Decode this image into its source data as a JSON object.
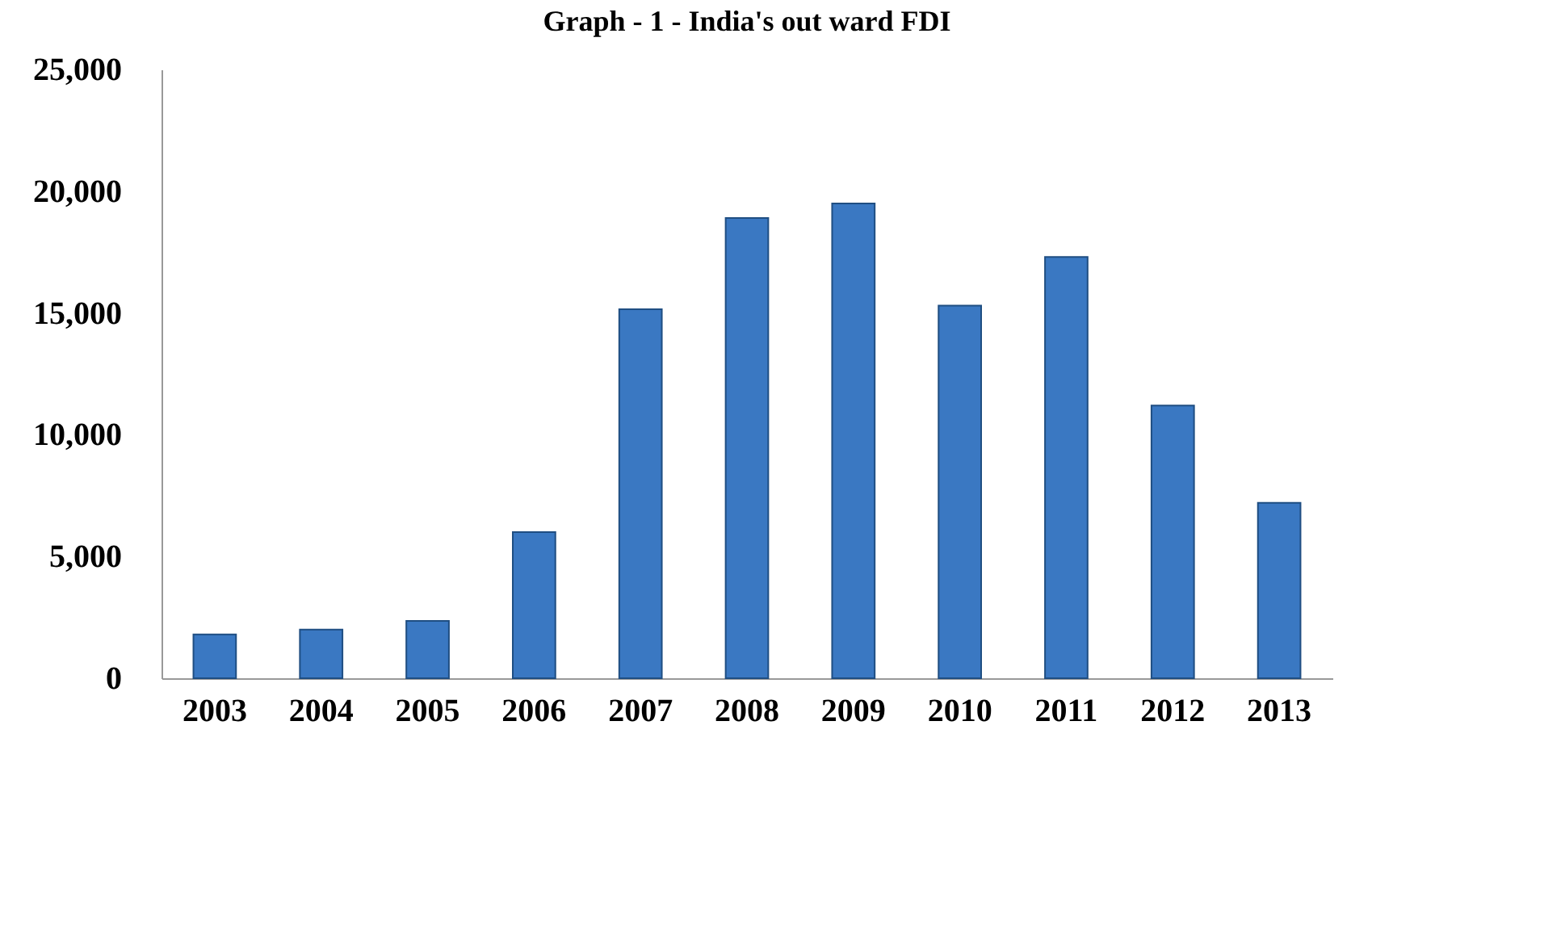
{
  "chart_data": {
    "type": "bar",
    "title": "Graph - 1 - India's out ward FDI",
    "categories": [
      "2003",
      "2004",
      "2005",
      "2006",
      "2007",
      "2008",
      "2009",
      "2010",
      "2011",
      "2012",
      "2013"
    ],
    "values": [
      1800,
      2000,
      2350,
      6000,
      15150,
      18900,
      19500,
      15300,
      17300,
      11200,
      7200
    ],
    "color": "#3a78c2",
    "ylim": [
      0,
      25000
    ],
    "yticks": [
      0,
      {
        "value": 5000,
        "label": "5,000"
      },
      {
        "value": 10000,
        "label": "10,000"
      },
      {
        "value": 15000,
        "label": "15,000"
      },
      {
        "value": 20000,
        "label": "20,000"
      },
      {
        "value": 25000,
        "label": "25,000"
      }
    ],
    "grid": false
  }
}
